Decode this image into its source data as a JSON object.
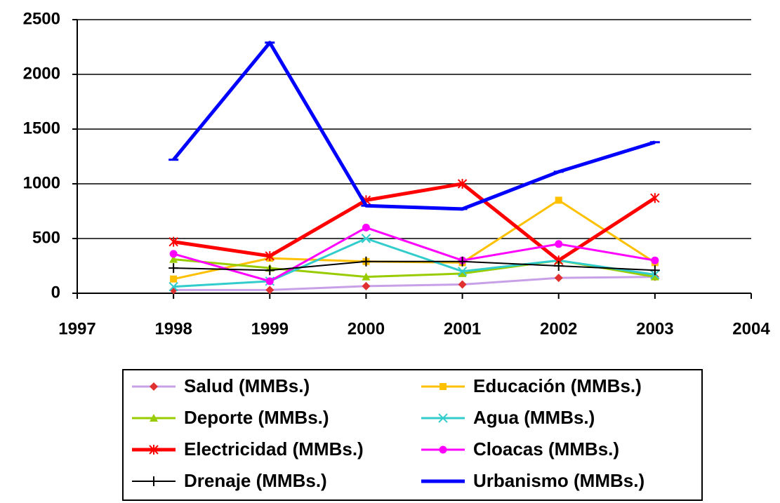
{
  "chart_data": {
    "type": "line",
    "x": [
      1998,
      1999,
      2000,
      2001,
      2002,
      2003
    ],
    "xlim": [
      1997,
      2004
    ],
    "xticks": [
      1997,
      1998,
      1999,
      2000,
      2001,
      2002,
      2003,
      2004
    ],
    "ylim": [
      0,
      2500
    ],
    "yticks": [
      0,
      500,
      1000,
      1500,
      2000,
      2500
    ],
    "grid": true,
    "series": [
      {
        "name": "Salud (MMBs.)",
        "color": "#c8a0e8",
        "marker": "diamond",
        "marker_color": "#e03030",
        "line_width": 3,
        "values": [
          30,
          30,
          65,
          80,
          140,
          150
        ]
      },
      {
        "name": "Educación (MMBs.)",
        "color": "#ffc000",
        "marker": "square",
        "line_width": 3,
        "values": [
          130,
          320,
          290,
          280,
          850,
          280
        ]
      },
      {
        "name": "Deporte (MMBs.)",
        "color": "#99cc00",
        "marker": "triangle",
        "line_width": 3,
        "values": [
          310,
          230,
          150,
          180,
          300,
          150
        ]
      },
      {
        "name": "Agua (MMBs.)",
        "color": "#33cccc",
        "marker": "x",
        "line_width": 3,
        "values": [
          60,
          110,
          500,
          200,
          300,
          170
        ]
      },
      {
        "name": "Electricidad (MMBs.)",
        "color": "#ff0000",
        "marker": "asterisk",
        "line_width": 5,
        "values": [
          470,
          340,
          850,
          1000,
          300,
          870
        ]
      },
      {
        "name": "Cloacas (MMBs.)",
        "color": "#ff00ff",
        "marker": "circle",
        "line_width": 3,
        "values": [
          360,
          110,
          600,
          300,
          450,
          300
        ]
      },
      {
        "name": "Drenaje (MMBs.)",
        "color": "#000000",
        "marker": "plus",
        "line_width": 2,
        "values": [
          230,
          210,
          290,
          290,
          250,
          210
        ]
      },
      {
        "name": "Urbanismo (MMBs.)",
        "color": "#0000ff",
        "marker": "dash",
        "line_width": 5,
        "values": [
          1220,
          2290,
          800,
          770,
          1110,
          1380
        ]
      }
    ]
  }
}
